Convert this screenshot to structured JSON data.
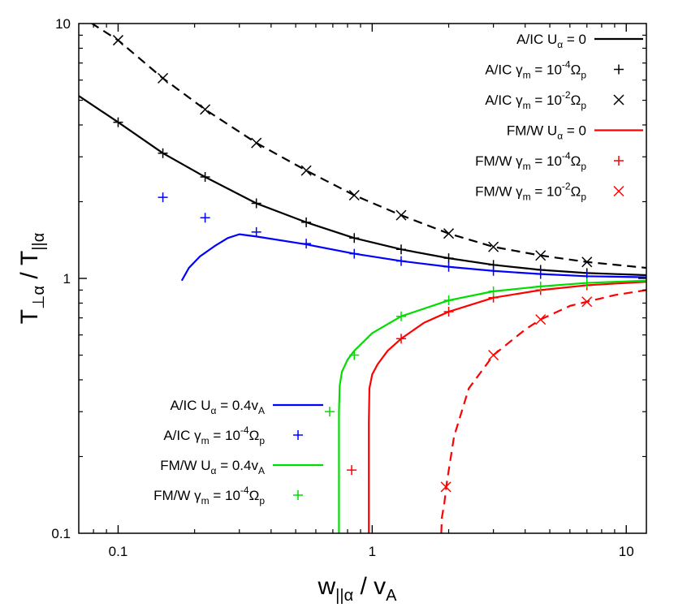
{
  "chart_data": {
    "type": "line",
    "x_scale": "log",
    "y_scale": "log",
    "xlim": [
      0.07,
      12
    ],
    "ylim": [
      0.1,
      10
    ],
    "grid": false,
    "xlabel": {
      "main": "w",
      "sub": "||α",
      "rest": " / v",
      "sub2": "A"
    },
    "ylabel": {
      "main": "T",
      "sub": "⊥α",
      "rest": " / T",
      "sub2": "||α"
    },
    "x_ticks": [
      {
        "value": 0.1,
        "label": "0.1"
      },
      {
        "value": 1,
        "label": "1"
      },
      {
        "value": 10,
        "label": "10"
      }
    ],
    "y_ticks": [
      {
        "value": 0.1,
        "label": "0.1"
      },
      {
        "value": 1,
        "label": "1"
      },
      {
        "value": 10,
        "label": "10"
      }
    ],
    "series": [
      {
        "label": {
          "prefix": "A/IC U",
          "sub": "α",
          "mid": " = 0",
          "sup": "",
          "mid2": "",
          "sub2": "",
          "tail": ""
        },
        "kind": "line",
        "color": "#000000",
        "dash": "solid",
        "x": [
          0.07,
          0.1,
          0.15,
          0.22,
          0.35,
          0.55,
          0.85,
          1.3,
          2,
          3,
          4.6,
          7,
          12
        ],
        "y": [
          5.2,
          4.1,
          3.1,
          2.5,
          1.97,
          1.66,
          1.44,
          1.3,
          1.2,
          1.13,
          1.08,
          1.05,
          1.03
        ]
      },
      {
        "label": {
          "prefix": "A/IC ",
          "sym": "γ",
          "sub": "m",
          "mid": " = 10",
          "sup": "-4",
          "mid2": "Ω",
          "sub2": "p",
          "tail": ""
        },
        "kind": "marker",
        "marker": "plus",
        "color": "#000000",
        "x": [
          0.1,
          0.15,
          0.22,
          0.35,
          0.55,
          0.85,
          1.3,
          2,
          3,
          4.6,
          7
        ],
        "y": [
          4.1,
          3.1,
          2.5,
          1.97,
          1.66,
          1.44,
          1.3,
          1.2,
          1.13,
          1.08,
          1.05
        ]
      },
      {
        "label": {
          "prefix": "A/IC ",
          "sym": "γ",
          "sub": "m",
          "mid": " = 10",
          "sup": "-2",
          "mid2": "Ω",
          "sub2": "p",
          "tail": ""
        },
        "kind": "marker",
        "marker": "cross",
        "color": "#000000",
        "x": [
          0.1,
          0.15,
          0.22,
          0.35,
          0.55,
          0.85,
          1.3,
          2,
          3,
          4.6,
          7
        ],
        "y": [
          8.6,
          6.1,
          4.6,
          3.4,
          2.65,
          2.12,
          1.77,
          1.5,
          1.33,
          1.23,
          1.16
        ]
      },
      {
        "label": {
          "prefix": "A/IC ",
          "sym": "",
          "sub": "",
          "mid": "",
          "sup": "",
          "mid2": "",
          "sub2": "",
          "tail": ""
        },
        "kind": "line",
        "color": "#000000",
        "dash": "dashed",
        "legend": false,
        "x": [
          0.07,
          0.1,
          0.15,
          0.22,
          0.35,
          0.55,
          0.85,
          1.3,
          2,
          3,
          4.6,
          7,
          12
        ],
        "y": [
          10.8,
          8.6,
          6.1,
          4.6,
          3.4,
          2.65,
          2.12,
          1.77,
          1.5,
          1.33,
          1.23,
          1.16,
          1.1
        ]
      },
      {
        "label": {
          "prefix": "FM/W U",
          "sub": "α",
          "mid": " = 0",
          "sup": "",
          "mid2": "",
          "sub2": "",
          "tail": ""
        },
        "kind": "line",
        "color": "#ff0000",
        "dash": "solid",
        "x": [
          0.97,
          0.97,
          0.975,
          1,
          1.05,
          1.15,
          1.3,
          1.6,
          2,
          3,
          4.6,
          7,
          12
        ],
        "y": [
          0.1,
          0.27,
          0.37,
          0.42,
          0.46,
          0.52,
          0.58,
          0.67,
          0.74,
          0.84,
          0.9,
          0.94,
          0.97
        ]
      },
      {
        "label": {
          "prefix": "FM/W ",
          "sym": "γ",
          "sub": "m",
          "mid": " = 10",
          "sup": "-4",
          "mid2": "Ω",
          "sub2": "p",
          "tail": ""
        },
        "kind": "marker",
        "marker": "plus",
        "color": "#ff0000",
        "x": [
          0.83,
          1.3,
          2,
          3,
          4.6,
          7
        ],
        "y": [
          0.177,
          0.58,
          0.74,
          0.84,
          0.9,
          0.94
        ]
      },
      {
        "label": {
          "prefix": "FM/W ",
          "sym": "γ",
          "sub": "m",
          "mid": " = 10",
          "sup": "-2",
          "mid2": "Ω",
          "sub2": "p",
          "tail": ""
        },
        "kind": "marker",
        "marker": "cross",
        "color": "#ff0000",
        "x": [
          1.95,
          3,
          4.6,
          7
        ],
        "y": [
          0.152,
          0.5,
          0.69,
          0.81
        ]
      },
      {
        "label": {
          "prefix": "FM/W ",
          "sym": "",
          "sub": "",
          "mid": "",
          "sup": "",
          "mid2": "",
          "sub2": "",
          "tail": ""
        },
        "kind": "line",
        "color": "#ff0000",
        "dash": "dashed",
        "legend": false,
        "x": [
          1.87,
          1.88,
          1.92,
          1.97,
          2.1,
          2.4,
          3,
          4,
          4.6,
          6,
          7,
          9,
          12
        ],
        "y": [
          0.1,
          0.115,
          0.13,
          0.16,
          0.24,
          0.37,
          0.5,
          0.63,
          0.69,
          0.78,
          0.81,
          0.86,
          0.9
        ]
      },
      {
        "label": {
          "prefix": "A/IC U",
          "sub": "α",
          "mid": " = 0.4v",
          "sup": "",
          "mid2": "",
          "sub2": "A",
          "tail": ""
        },
        "kind": "line",
        "color": "#0000ff",
        "dash": "solid",
        "x": [
          0.178,
          0.19,
          0.21,
          0.24,
          0.27,
          0.3,
          0.35,
          0.55,
          0.85,
          1.3,
          2,
          3,
          4.6,
          7,
          12
        ],
        "y": [
          0.98,
          1.1,
          1.22,
          1.34,
          1.44,
          1.49,
          1.46,
          1.36,
          1.25,
          1.17,
          1.11,
          1.07,
          1.04,
          1.02,
          1.01
        ]
      },
      {
        "label": {
          "prefix": "A/IC ",
          "sym": "γ",
          "sub": "m",
          "mid": " = 10",
          "sup": "-4",
          "mid2": "Ω",
          "sub2": "p",
          "tail": ""
        },
        "kind": "marker",
        "marker": "plus",
        "color": "#0000ff",
        "x": [
          0.15,
          0.22,
          0.35,
          0.55,
          0.85,
          1.3,
          2,
          3,
          4.6,
          7
        ],
        "y": [
          2.08,
          1.73,
          1.52,
          1.37,
          1.25,
          1.17,
          1.11,
          1.07,
          1.04,
          1.02
        ]
      },
      {
        "label": {
          "prefix": "FM/W U",
          "sub": "α",
          "mid": " = 0.4v",
          "sup": "",
          "mid2": "",
          "sub2": "A",
          "tail": ""
        },
        "kind": "line",
        "color": "#00dd00",
        "dash": "solid",
        "x": [
          0.74,
          0.74,
          0.745,
          0.76,
          0.8,
          0.85,
          1,
          1.3,
          2,
          3,
          4.6,
          7,
          12
        ],
        "y": [
          0.1,
          0.3,
          0.38,
          0.43,
          0.48,
          0.52,
          0.61,
          0.71,
          0.82,
          0.89,
          0.93,
          0.96,
          0.98
        ]
      },
      {
        "label": {
          "prefix": "FM/W ",
          "sym": "γ",
          "sub": "m",
          "mid": " = 10",
          "sup": "-4",
          "mid2": "Ω",
          "sub2": "p",
          "tail": ""
        },
        "kind": "marker",
        "marker": "plus",
        "color": "#00dd00",
        "x": [
          0.68,
          0.85,
          1.3,
          2,
          3,
          4.6,
          7
        ],
        "y": [
          0.3,
          0.5,
          0.71,
          0.82,
          0.89,
          0.93,
          0.96
        ]
      }
    ],
    "legend_top_right": [
      0,
      1,
      2,
      4,
      5,
      6
    ],
    "legend_bottom_left": [
      8,
      9,
      10,
      11
    ]
  }
}
